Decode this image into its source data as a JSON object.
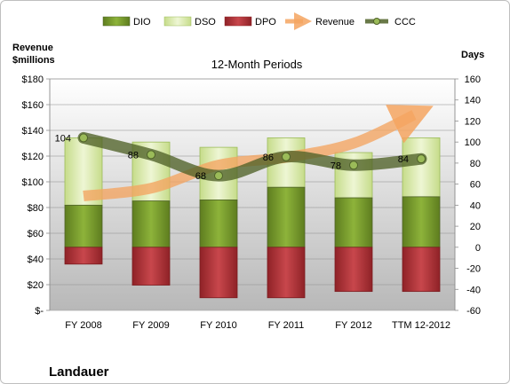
{
  "company": "Landauer",
  "chart_data": {
    "type": "bar",
    "title": "12-Month Periods",
    "left_axis_label": [
      "Revenue",
      "$millions"
    ],
    "right_axis_label": "Days",
    "categories": [
      "FY 2008",
      "FY 2009",
      "FY 2010",
      "FY 2011",
      "FY 2012",
      "TTM 12-2012"
    ],
    "left_axis": {
      "min": 0,
      "max": 180,
      "step": 20,
      "tick_labels": [
        "$-",
        "$20",
        "$40",
        "$60",
        "$80",
        "$100",
        "$120",
        "$140",
        "$160",
        "$180"
      ]
    },
    "right_axis": {
      "min": -60,
      "max": 160,
      "step": 20,
      "tick_labels": [
        "-60",
        "-40",
        "-20",
        "0",
        "20",
        "40",
        "60",
        "80",
        "100",
        "120",
        "140",
        "160"
      ]
    },
    "series": [
      {
        "name": "DIO",
        "type": "stacked-bar",
        "axis": "right",
        "values": [
          40,
          44,
          45,
          57,
          47,
          48
        ],
        "color": "#7a9a2e"
      },
      {
        "name": "DSO",
        "type": "stacked-bar",
        "axis": "right",
        "values": [
          64,
          56,
          50,
          47,
          43,
          56
        ],
        "color": "#d6e8a4"
      },
      {
        "name": "DPO",
        "type": "bar-below-zero",
        "axis": "right",
        "values": [
          16,
          36,
          48,
          48,
          42,
          42
        ],
        "color": "#b3353a"
      },
      {
        "name": "Revenue",
        "type": "line",
        "axis": "left",
        "values": [
          89,
          95,
          113,
          119,
          130,
          152
        ],
        "color": "#f4a460"
      },
      {
        "name": "CCC",
        "type": "line",
        "axis": "right",
        "values": [
          104,
          88,
          68,
          86,
          78,
          84
        ],
        "color": "#4f6228"
      }
    ],
    "data_labels": [
      "104",
      "88",
      "68",
      "86",
      "78",
      "84"
    ],
    "legend_position": "top",
    "grid": true
  }
}
